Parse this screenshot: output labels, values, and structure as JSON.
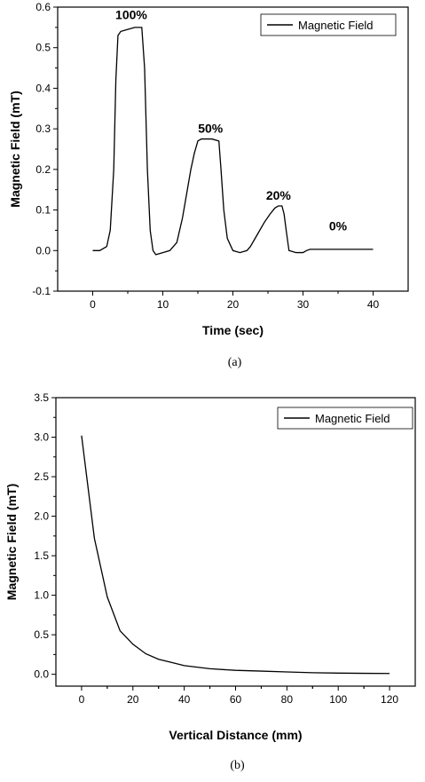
{
  "chart_data": [
    {
      "type": "line",
      "caption": "(a)",
      "xlabel": "Time (sec)",
      "ylabel": "Magnetic Field (mT)",
      "xlim": [
        -5,
        45
      ],
      "ylim": [
        -0.1,
        0.6
      ],
      "xticks": [
        0,
        10,
        20,
        30,
        40
      ],
      "yticks": [
        -0.1,
        0.0,
        0.1,
        0.2,
        0.3,
        0.4,
        0.5,
        0.6
      ],
      "ytick_labels": [
        "-0.1",
        "0.0",
        "0.1",
        "0.2",
        "0.3",
        "0.4",
        "0.5",
        "0.6"
      ],
      "xtick_labels": [
        "0",
        "10",
        "20",
        "30",
        "40"
      ],
      "legend": {
        "position": "top-right",
        "label": "Magnetic Field"
      },
      "series": [
        {
          "name": "Magnetic Field",
          "x": [
            0,
            1,
            2,
            2.5,
            3,
            3.3,
            3.6,
            4,
            5,
            6,
            7,
            7.4,
            7.8,
            8.2,
            8.6,
            9,
            10,
            11,
            12,
            12.8,
            13.5,
            14,
            14.5,
            15,
            15.5,
            16,
            17,
            18,
            18.3,
            18.7,
            19.2,
            20,
            21,
            22,
            22.5,
            23.5,
            24.5,
            25.3,
            26,
            26.5,
            27,
            27.3,
            27.6,
            28,
            29,
            30,
            30.5,
            31,
            32,
            34,
            36,
            38,
            40
          ],
          "y": [
            0.0,
            0.0,
            0.01,
            0.05,
            0.2,
            0.42,
            0.53,
            0.54,
            0.545,
            0.55,
            0.55,
            0.45,
            0.2,
            0.05,
            0.0,
            -0.01,
            -0.005,
            0.0,
            0.02,
            0.08,
            0.15,
            0.2,
            0.24,
            0.27,
            0.275,
            0.275,
            0.275,
            0.27,
            0.2,
            0.1,
            0.03,
            0.0,
            -0.005,
            0.0,
            0.01,
            0.04,
            0.07,
            0.09,
            0.105,
            0.11,
            0.11,
            0.09,
            0.05,
            0.0,
            -0.005,
            -0.005,
            0.0,
            0.003,
            0.003,
            0.003,
            0.003,
            0.003,
            0.003
          ]
        }
      ],
      "annotations": [
        {
          "text": "100%",
          "x": 5.5,
          "y": 0.57
        },
        {
          "text": "50%",
          "x": 16.8,
          "y": 0.29
        },
        {
          "text": "20%",
          "x": 26.5,
          "y": 0.125
        },
        {
          "text": "0%",
          "x": 35,
          "y": 0.05
        }
      ]
    },
    {
      "type": "line",
      "caption": "(b)",
      "xlabel": "Vertical Distance (mm)",
      "ylabel": "Magnetic Field (mT)",
      "xlim": [
        -10,
        130
      ],
      "ylim": [
        -0.15,
        3.5
      ],
      "xticks": [
        0,
        20,
        40,
        60,
        80,
        100,
        120
      ],
      "xtick_labels": [
        "0",
        "20",
        "40",
        "60",
        "80",
        "100",
        "120"
      ],
      "yticks": [
        0.0,
        0.5,
        1.0,
        1.5,
        2.0,
        2.5,
        3.0,
        3.5
      ],
      "ytick_labels": [
        "0.0",
        "0.5",
        "1.0",
        "1.5",
        "2.0",
        "2.5",
        "3.0",
        "3.5"
      ],
      "legend": {
        "position": "top-right",
        "label": "Magnetic Field"
      },
      "series": [
        {
          "name": "Magnetic Field",
          "x": [
            0,
            5,
            10,
            15,
            20,
            25,
            30,
            35,
            40,
            50,
            60,
            70,
            80,
            90,
            100,
            110,
            120
          ],
          "y": [
            3.02,
            1.72,
            0.98,
            0.55,
            0.38,
            0.26,
            0.19,
            0.15,
            0.11,
            0.07,
            0.05,
            0.04,
            0.03,
            0.02,
            0.015,
            0.012,
            0.01
          ]
        }
      ]
    }
  ]
}
